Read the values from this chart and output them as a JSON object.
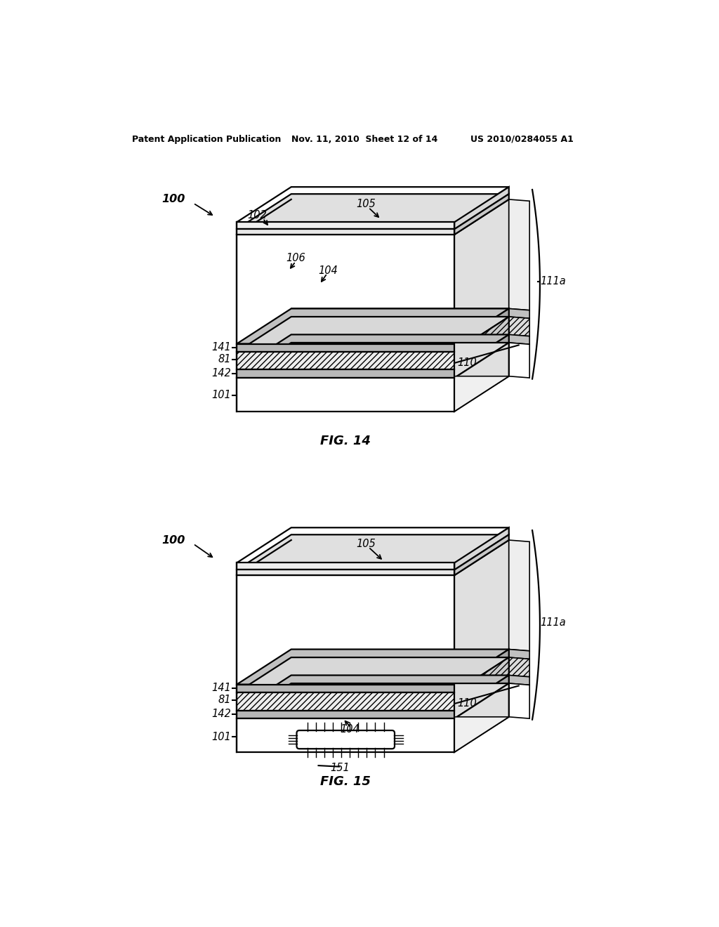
{
  "header_left": "Patent Application Publication",
  "header_mid": "Nov. 11, 2010  Sheet 12 of 14",
  "header_right": "US 2010/0284055 A1",
  "fig14_label": "FIG. 14",
  "fig15_label": "FIG. 15",
  "bg_color": "#ffffff",
  "line_color": "#000000"
}
